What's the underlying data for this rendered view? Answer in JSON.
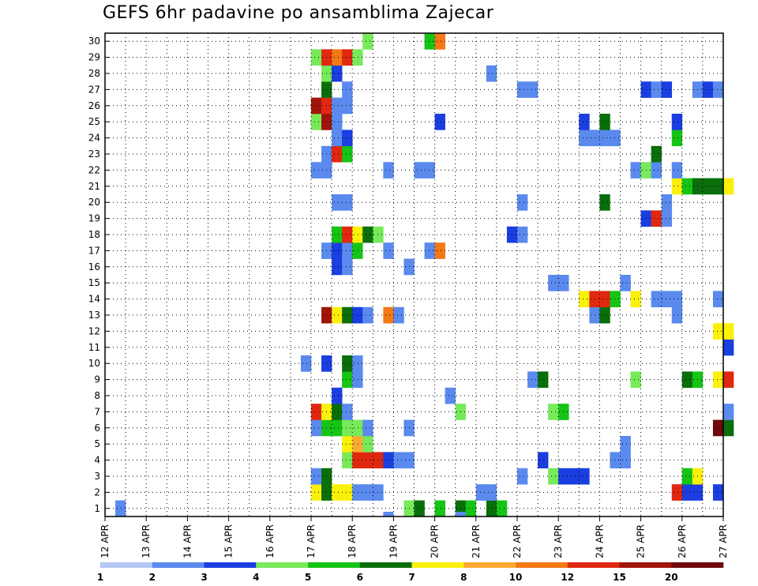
{
  "chart_data": {
    "type": "heatmap",
    "title": "GEFS 6hr padavine po ansamblima Zajecar",
    "y_categories": [
      "1",
      "2",
      "3",
      "4",
      "5",
      "6",
      "7",
      "8",
      "9",
      "10",
      "11",
      "12",
      "13",
      "14",
      "15",
      "16",
      "17",
      "18",
      "19",
      "20",
      "21",
      "22",
      "23",
      "24",
      "25",
      "26",
      "27",
      "28",
      "29",
      "30"
    ],
    "x_tick_labels": [
      "12 APR",
      "13 APR",
      "14 APR",
      "15 APR",
      "16 APR",
      "17 APR",
      "18 APR",
      "19 APR",
      "20 APR",
      "21 APR",
      "22 APR",
      "23 APR",
      "24 APR",
      "25 APR",
      "26 APR",
      "27 APR"
    ],
    "x_range_steps": [
      0,
      60
    ],
    "step_hours": 6,
    "grid": true,
    "legend": "bottom",
    "levels": [
      "1",
      "2",
      "3",
      "4",
      "5",
      "6",
      "7",
      "8",
      "10",
      "12",
      "15",
      "20"
    ],
    "level_colors": [
      "#b4c8f4",
      "#5a8aee",
      "#1a3ee0",
      "#78ea5a",
      "#16c416",
      "#0a6e0a",
      "#faf00a",
      "#faaa32",
      "#f47814",
      "#e02810",
      "#a0140a",
      "#6e0a0a"
    ],
    "cells": [
      [
        0,
        1,
        1
      ],
      [
        0,
        29,
        3
      ],
      [
        0,
        30,
        5
      ],
      [
        0,
        32,
        4
      ],
      [
        0,
        34,
        5
      ],
      [
        0,
        35,
        4
      ],
      [
        0,
        37,
        5
      ],
      [
        0,
        38,
        4
      ],
      [
        1,
        20,
        6
      ],
      [
        1,
        21,
        5
      ],
      [
        1,
        22,
        6
      ],
      [
        1,
        23,
        6
      ],
      [
        1,
        24,
        1
      ],
      [
        1,
        25,
        1
      ],
      [
        1,
        26,
        1
      ],
      [
        1,
        36,
        1
      ],
      [
        1,
        37,
        1
      ],
      [
        1,
        55,
        9
      ],
      [
        1,
        56,
        2
      ],
      [
        1,
        57,
        2
      ],
      [
        1,
        59,
        2
      ],
      [
        2,
        20,
        1
      ],
      [
        2,
        21,
        5
      ],
      [
        2,
        40,
        1
      ],
      [
        2,
        43,
        3
      ],
      [
        2,
        44,
        2
      ],
      [
        2,
        45,
        2
      ],
      [
        2,
        46,
        2
      ],
      [
        2,
        56,
        4
      ],
      [
        2,
        57,
        6
      ],
      [
        3,
        23,
        3
      ],
      [
        3,
        24,
        9
      ],
      [
        3,
        25,
        9
      ],
      [
        3,
        26,
        9
      ],
      [
        3,
        27,
        2
      ],
      [
        3,
        28,
        1
      ],
      [
        3,
        29,
        1
      ],
      [
        3,
        42,
        2
      ],
      [
        3,
        49,
        1
      ],
      [
        3,
        50,
        1
      ],
      [
        4,
        23,
        6
      ],
      [
        4,
        24,
        7
      ],
      [
        4,
        25,
        3
      ],
      [
        4,
        50,
        1
      ],
      [
        5,
        20,
        1
      ],
      [
        5,
        21,
        4
      ],
      [
        5,
        22,
        4
      ],
      [
        5,
        23,
        3
      ],
      [
        5,
        24,
        3
      ],
      [
        5,
        25,
        1
      ],
      [
        5,
        29,
        1
      ],
      [
        5,
        59,
        11
      ],
      [
        5,
        60,
        5
      ],
      [
        6,
        20,
        9
      ],
      [
        6,
        21,
        6
      ],
      [
        6,
        22,
        5
      ],
      [
        6,
        23,
        1
      ],
      [
        6,
        34,
        3
      ],
      [
        6,
        43,
        3
      ],
      [
        6,
        44,
        4
      ],
      [
        6,
        60,
        1
      ],
      [
        7,
        22,
        2
      ],
      [
        7,
        33,
        1
      ],
      [
        8,
        23,
        4
      ],
      [
        8,
        24,
        1
      ],
      [
        8,
        41,
        1
      ],
      [
        8,
        42,
        5
      ],
      [
        8,
        51,
        3
      ],
      [
        8,
        56,
        5
      ],
      [
        8,
        57,
        4
      ],
      [
        8,
        59,
        6
      ],
      [
        8,
        60,
        9
      ],
      [
        9,
        19,
        1
      ],
      [
        9,
        21,
        2
      ],
      [
        9,
        23,
        5
      ],
      [
        9,
        24,
        1
      ],
      [
        10,
        60,
        2
      ],
      [
        11,
        59,
        6
      ],
      [
        11,
        60,
        6
      ],
      [
        12,
        21,
        10
      ],
      [
        12,
        22,
        6
      ],
      [
        12,
        23,
        5
      ],
      [
        12,
        24,
        2
      ],
      [
        12,
        25,
        1
      ],
      [
        12,
        27,
        8
      ],
      [
        12,
        28,
        1
      ],
      [
        12,
        47,
        1
      ],
      [
        12,
        48,
        5
      ],
      [
        12,
        55,
        1
      ],
      [
        13,
        46,
        6
      ],
      [
        13,
        47,
        9
      ],
      [
        13,
        48,
        9
      ],
      [
        13,
        49,
        4
      ],
      [
        13,
        51,
        6
      ],
      [
        13,
        53,
        1
      ],
      [
        13,
        54,
        1
      ],
      [
        13,
        55,
        1
      ],
      [
        13,
        59,
        1
      ],
      [
        14,
        43,
        1
      ],
      [
        14,
        44,
        1
      ],
      [
        14,
        50,
        1
      ],
      [
        15,
        22,
        2
      ],
      [
        15,
        23,
        1
      ],
      [
        15,
        29,
        1
      ],
      [
        16,
        21,
        1
      ],
      [
        16,
        22,
        2
      ],
      [
        16,
        23,
        1
      ],
      [
        16,
        24,
        4
      ],
      [
        16,
        27,
        1
      ],
      [
        16,
        31,
        1
      ],
      [
        16,
        32,
        8
      ],
      [
        17,
        22,
        4
      ],
      [
        17,
        23,
        9
      ],
      [
        17,
        24,
        6
      ],
      [
        17,
        25,
        5
      ],
      [
        17,
        26,
        3
      ],
      [
        17,
        39,
        2
      ],
      [
        17,
        40,
        1
      ],
      [
        18,
        52,
        2
      ],
      [
        18,
        53,
        9
      ],
      [
        18,
        54,
        1
      ],
      [
        19,
        22,
        1
      ],
      [
        19,
        23,
        1
      ],
      [
        19,
        40,
        1
      ],
      [
        19,
        48,
        5
      ],
      [
        19,
        54,
        1
      ],
      [
        20,
        55,
        6
      ],
      [
        20,
        56,
        4
      ],
      [
        20,
        57,
        5
      ],
      [
        20,
        58,
        5
      ],
      [
        20,
        59,
        5
      ],
      [
        20,
        60,
        6
      ],
      [
        21,
        20,
        1
      ],
      [
        21,
        21,
        1
      ],
      [
        21,
        27,
        1
      ],
      [
        21,
        30,
        1
      ],
      [
        21,
        31,
        1
      ],
      [
        21,
        51,
        1
      ],
      [
        21,
        52,
        3
      ],
      [
        21,
        53,
        1
      ],
      [
        21,
        55,
        1
      ],
      [
        22,
        21,
        1
      ],
      [
        22,
        22,
        9
      ],
      [
        22,
        23,
        4
      ],
      [
        22,
        53,
        5
      ],
      [
        23,
        22,
        1
      ],
      [
        23,
        23,
        2
      ],
      [
        23,
        46,
        1
      ],
      [
        23,
        47,
        1
      ],
      [
        23,
        48,
        1
      ],
      [
        23,
        49,
        1
      ],
      [
        23,
        55,
        4
      ],
      [
        24,
        20,
        3
      ],
      [
        24,
        21,
        10
      ],
      [
        24,
        22,
        1
      ],
      [
        24,
        32,
        2
      ],
      [
        24,
        46,
        2
      ],
      [
        24,
        48,
        5
      ],
      [
        24,
        55,
        2
      ],
      [
        25,
        20,
        10
      ],
      [
        25,
        21,
        9
      ],
      [
        25,
        22,
        1
      ],
      [
        25,
        23,
        1
      ],
      [
        26,
        21,
        5
      ],
      [
        26,
        23,
        1
      ],
      [
        26,
        40,
        1
      ],
      [
        26,
        41,
        1
      ],
      [
        26,
        52,
        2
      ],
      [
        26,
        53,
        1
      ],
      [
        26,
        54,
        2
      ],
      [
        26,
        57,
        1
      ],
      [
        26,
        58,
        2
      ],
      [
        26,
        59,
        1
      ],
      [
        27,
        21,
        3
      ],
      [
        27,
        22,
        2
      ],
      [
        27,
        37,
        1
      ],
      [
        28,
        20,
        3
      ],
      [
        28,
        21,
        9
      ],
      [
        28,
        22,
        8
      ],
      [
        28,
        23,
        9
      ],
      [
        28,
        24,
        3
      ],
      [
        29,
        25,
        3
      ],
      [
        29,
        31,
        4
      ],
      [
        29,
        32,
        8
      ]
    ],
    "below_axis_marks": [
      [
        0,
        27,
        1
      ],
      [
        0,
        34,
        1
      ]
    ]
  }
}
